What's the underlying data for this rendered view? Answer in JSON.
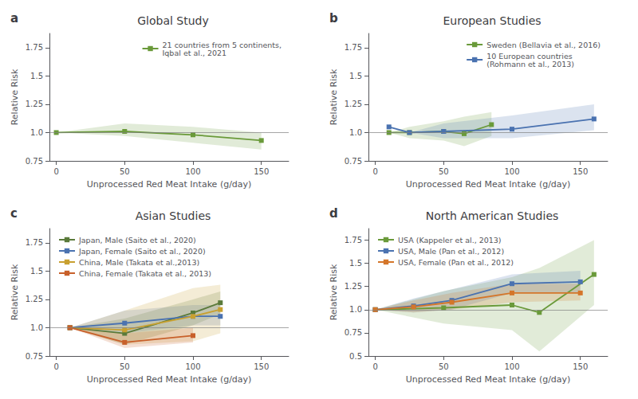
{
  "chart_data": [
    {
      "type": "line",
      "title": "Global Study",
      "annotations": [
        "a"
      ],
      "xlabel": "Unprocessed Red Meat Intake (g/day)",
      "ylabel": "Relative Risk",
      "xlim": [
        -5,
        170
      ],
      "xticks": [
        0,
        50,
        100,
        150
      ],
      "ylim": [
        0.75,
        1.875
      ],
      "yticks": [
        0.75,
        {
          "value": 1.0,
          "label": "1.0"
        },
        1.25,
        1.5,
        1.75
      ],
      "reference_y": 1.0,
      "grid": false,
      "legend": "upper right",
      "marker": "square",
      "series": [
        {
          "name": "21 countries from 5 continents,\nIqbal et al., 2021",
          "color": "#6a9a3a",
          "x": [
            0,
            50,
            100,
            150
          ],
          "values": [
            1.0,
            1.01,
            0.98,
            0.93
          ],
          "ci_upper": [
            1.0,
            1.08,
            1.05,
            1.0
          ],
          "ci_lower": [
            1.0,
            0.97,
            0.91,
            0.85
          ]
        }
      ]
    },
    {
      "type": "line",
      "title": "European Studies",
      "annotations": [
        "b"
      ],
      "xlabel": "Unprocessed Red Meat Intake (g/day)",
      "ylabel": "Relative Risk",
      "xlim": [
        -5,
        170
      ],
      "xticks": [
        0,
        50,
        100,
        150
      ],
      "ylim": [
        0.75,
        1.875
      ],
      "yticks": [
        0.75,
        {
          "value": 1.0,
          "label": "1.0"
        },
        1.25,
        1.5,
        1.75
      ],
      "reference_y": 1.0,
      "grid": false,
      "legend": "upper right",
      "marker": "square",
      "series": [
        {
          "name": "Sweden (Bellavia et al., 2016)",
          "color": "#6a9a3a",
          "x": [
            10,
            25,
            50,
            65,
            85
          ],
          "values": [
            1.0,
            1.0,
            1.01,
            0.99,
            1.07
          ],
          "ci_upper": [
            1.0,
            1.05,
            1.1,
            1.14,
            1.18
          ],
          "ci_lower": [
            1.0,
            0.95,
            0.93,
            0.88,
            0.97
          ]
        },
        {
          "name": "10 European countries\n(Rohmann et al., 2013)",
          "color": "#4a72b0",
          "x": [
            10,
            25,
            50,
            100,
            160
          ],
          "values": [
            1.05,
            1.0,
            1.01,
            1.03,
            1.12
          ],
          "ci_upper": [
            1.05,
            1.0,
            1.08,
            1.15,
            1.25
          ],
          "ci_lower": [
            1.05,
            1.0,
            0.95,
            0.95,
            1.02
          ]
        }
      ]
    },
    {
      "type": "line",
      "title": "Asian Studies",
      "annotations": [
        "c"
      ],
      "xlabel": "Unprocessed Red Meat Intake (g/day)",
      "ylabel": "Relative Risk",
      "xlim": [
        -5,
        170
      ],
      "xticks": [
        0,
        50,
        100,
        150
      ],
      "ylim": [
        0.75,
        1.875
      ],
      "yticks": [
        0.75,
        {
          "value": 1.0,
          "label": "1.0"
        },
        1.25,
        1.5,
        1.75
      ],
      "reference_y": 1.0,
      "grid": false,
      "legend": "upper left",
      "marker": "square",
      "series": [
        {
          "name": "Japan, Male (Saito et al., 2020)",
          "color": "#5a7a3a",
          "x": [
            10,
            50,
            100,
            120
          ],
          "values": [
            1.0,
            0.95,
            1.13,
            1.22
          ],
          "ci_upper": [
            1.0,
            1.08,
            1.25,
            1.32
          ],
          "ci_lower": [
            1.0,
            0.85,
            1.02,
            1.12
          ]
        },
        {
          "name": "Japan, Female (Saito et al., 2020)",
          "color": "#4a72b0",
          "x": [
            10,
            50,
            100,
            120
          ],
          "values": [
            1.0,
            1.04,
            1.1,
            1.1
          ],
          "ci_upper": [
            1.0,
            1.15,
            1.2,
            1.2
          ],
          "ci_lower": [
            1.0,
            0.95,
            1.02,
            1.02
          ]
        },
        {
          "name": "China, Male (Takata et al.,2013)",
          "color": "#c8a030",
          "x": [
            10,
            50,
            100,
            120
          ],
          "values": [
            1.0,
            0.98,
            1.1,
            1.16
          ],
          "ci_upper": [
            1.0,
            1.15,
            1.35,
            1.38
          ],
          "ci_lower": [
            1.0,
            0.85,
            0.88,
            0.95
          ]
        },
        {
          "name": "China, Female (Takata et al., 2013)",
          "color": "#c8602a",
          "x": [
            10,
            50,
            100
          ],
          "values": [
            1.0,
            0.87,
            0.93
          ],
          "ci_upper": [
            1.0,
            0.95,
            1.0
          ],
          "ci_lower": [
            1.0,
            0.82,
            0.87
          ]
        }
      ]
    },
    {
      "type": "line",
      "title": "North American Studies",
      "annotations": [
        "d"
      ],
      "xlabel": "Unprocessed Red Meat Intake (g/day)",
      "ylabel": "Relative Risk",
      "xlim": [
        -5,
        170
      ],
      "xticks": [
        0,
        50,
        100,
        150
      ],
      "ylim": [
        0.5,
        1.875
      ],
      "yticks": [
        0.5,
        0.75,
        {
          "value": 1.0,
          "label": "1.0"
        },
        1.25,
        1.5,
        1.75
      ],
      "reference_y": 1.0,
      "grid": false,
      "legend": "upper left",
      "marker": "square",
      "series": [
        {
          "name": "USA (Kappeler et al., 2013)",
          "color": "#6a9a3a",
          "x": [
            0,
            50,
            100,
            120,
            160
          ],
          "values": [
            1.0,
            1.02,
            1.05,
            0.97,
            1.38
          ],
          "ci_upper": [
            1.0,
            1.2,
            1.35,
            1.45,
            1.75
          ],
          "ci_lower": [
            1.0,
            0.85,
            0.78,
            0.55,
            1.05
          ]
        },
        {
          "name": "USA, Male (Pan et al., 2012)",
          "color": "#4a72b0",
          "x": [
            0,
            28,
            56,
            100,
            150
          ],
          "values": [
            1.0,
            1.04,
            1.1,
            1.28,
            1.3
          ],
          "ci_upper": [
            1.0,
            1.12,
            1.22,
            1.38,
            1.42
          ],
          "ci_lower": [
            1.0,
            0.97,
            1.0,
            1.18,
            1.18
          ]
        },
        {
          "name": "USA, Female (Pan et al., 2012)",
          "color": "#d4762a",
          "x": [
            0,
            28,
            56,
            100,
            150
          ],
          "values": [
            1.0,
            1.03,
            1.08,
            1.18,
            1.18
          ],
          "ci_upper": [
            1.0,
            1.1,
            1.18,
            1.28,
            1.28
          ],
          "ci_lower": [
            1.0,
            0.97,
            1.0,
            1.08,
            1.1
          ]
        }
      ]
    }
  ]
}
